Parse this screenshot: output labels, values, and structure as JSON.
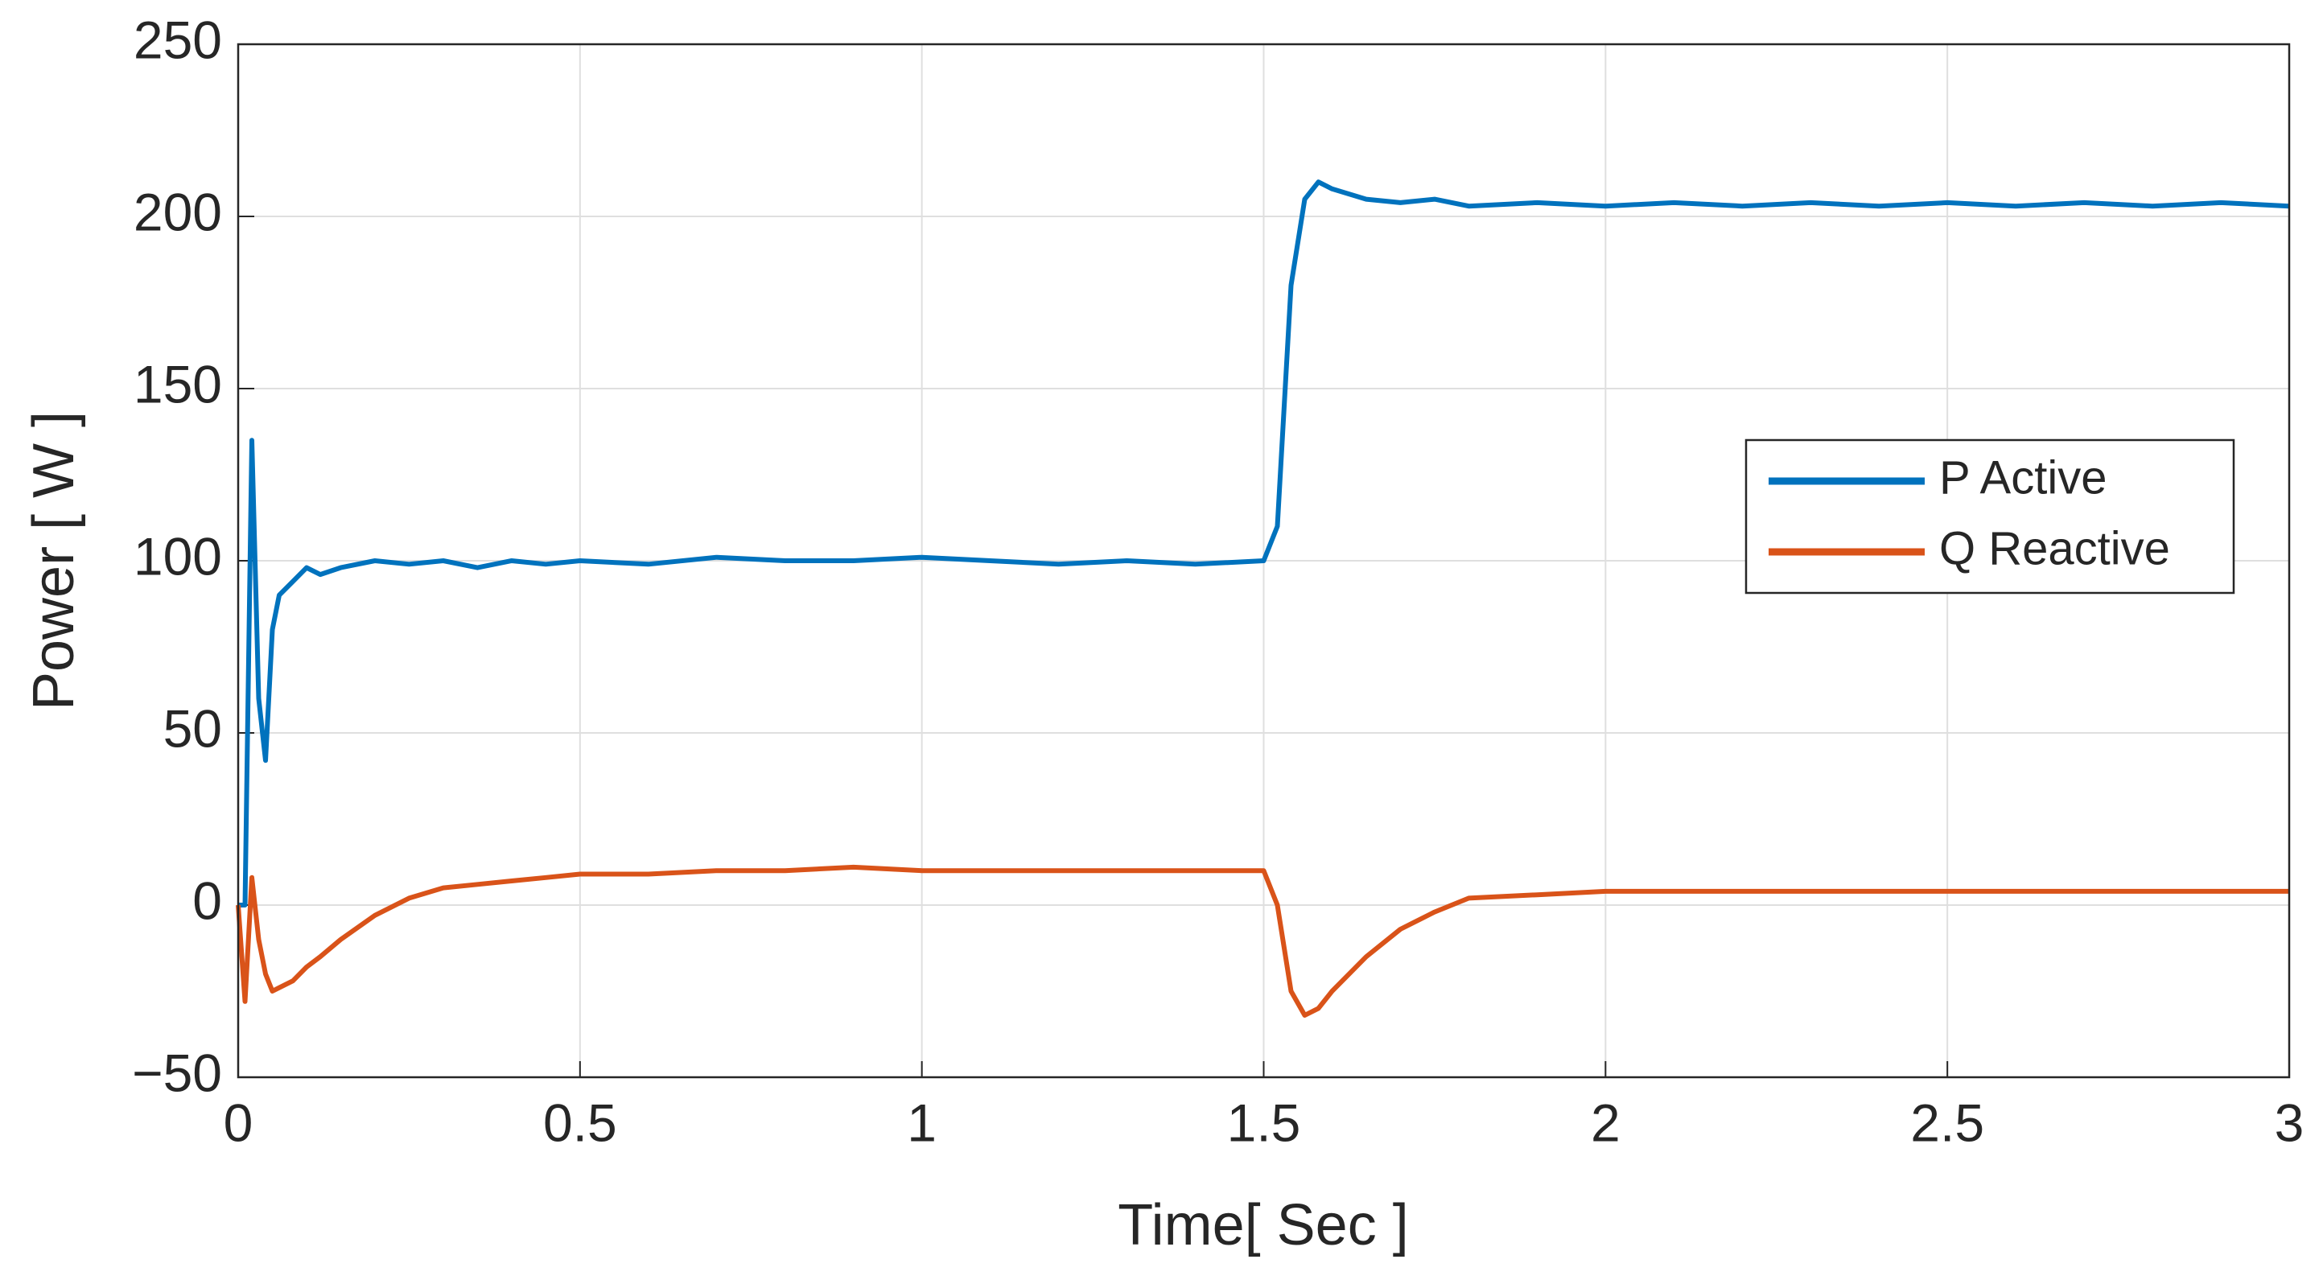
{
  "chart_data": {
    "type": "line",
    "xlabel": "Time[ Sec ]",
    "ylabel": "Power [ W ]",
    "x": [
      0,
      0.01,
      0.02,
      0.03,
      0.04,
      0.05,
      0.06,
      0.08,
      0.1,
      0.12,
      0.15,
      0.2,
      0.25,
      0.3,
      0.35,
      0.4,
      0.45,
      0.5,
      0.6,
      0.7,
      0.8,
      0.9,
      1,
      1.1,
      1.2,
      1.3,
      1.4,
      1.5,
      1.52,
      1.54,
      1.56,
      1.58,
      1.6,
      1.65,
      1.7,
      1.75,
      1.8,
      1.9,
      2,
      2.1,
      2.2,
      2.3,
      2.4,
      2.5,
      2.6,
      2.7,
      2.8,
      2.9,
      3
    ],
    "series": [
      {
        "name": "P Active",
        "color": "#0072bd",
        "values": [
          0,
          0,
          135,
          60,
          42,
          80,
          90,
          94,
          98,
          96,
          98,
          100,
          99,
          100,
          98,
          100,
          99,
          100,
          99,
          101,
          100,
          100,
          101,
          100,
          99,
          100,
          99,
          100,
          110,
          180,
          205,
          210,
          208,
          205,
          204,
          205,
          203,
          204,
          203,
          204,
          203,
          204,
          203,
          204,
          203,
          204,
          203,
          204,
          203
        ]
      },
      {
        "name": "Q Reactive",
        "color": "#d95319",
        "values": [
          0,
          -28,
          8,
          -10,
          -20,
          -25,
          -24,
          -22,
          -18,
          -15,
          -10,
          -3,
          2,
          5,
          6,
          7,
          8,
          9,
          9,
          10,
          10,
          11,
          10,
          10,
          10,
          10,
          10,
          10,
          0,
          -25,
          -32,
          -30,
          -25,
          -15,
          -7,
          -2,
          2,
          3,
          4,
          4,
          4,
          4,
          4,
          4,
          4,
          4,
          4,
          4,
          4
        ]
      }
    ],
    "xlim": [
      0,
      3
    ],
    "xticks": [
      0,
      0.5,
      1,
      1.5,
      2,
      2.5,
      3
    ],
    "ylim": [
      -50,
      250
    ],
    "yticks": [
      {
        "value": -50,
        "label": "−50"
      },
      0,
      50,
      100,
      150,
      200,
      250
    ],
    "grid": true,
    "legend": "east"
  }
}
